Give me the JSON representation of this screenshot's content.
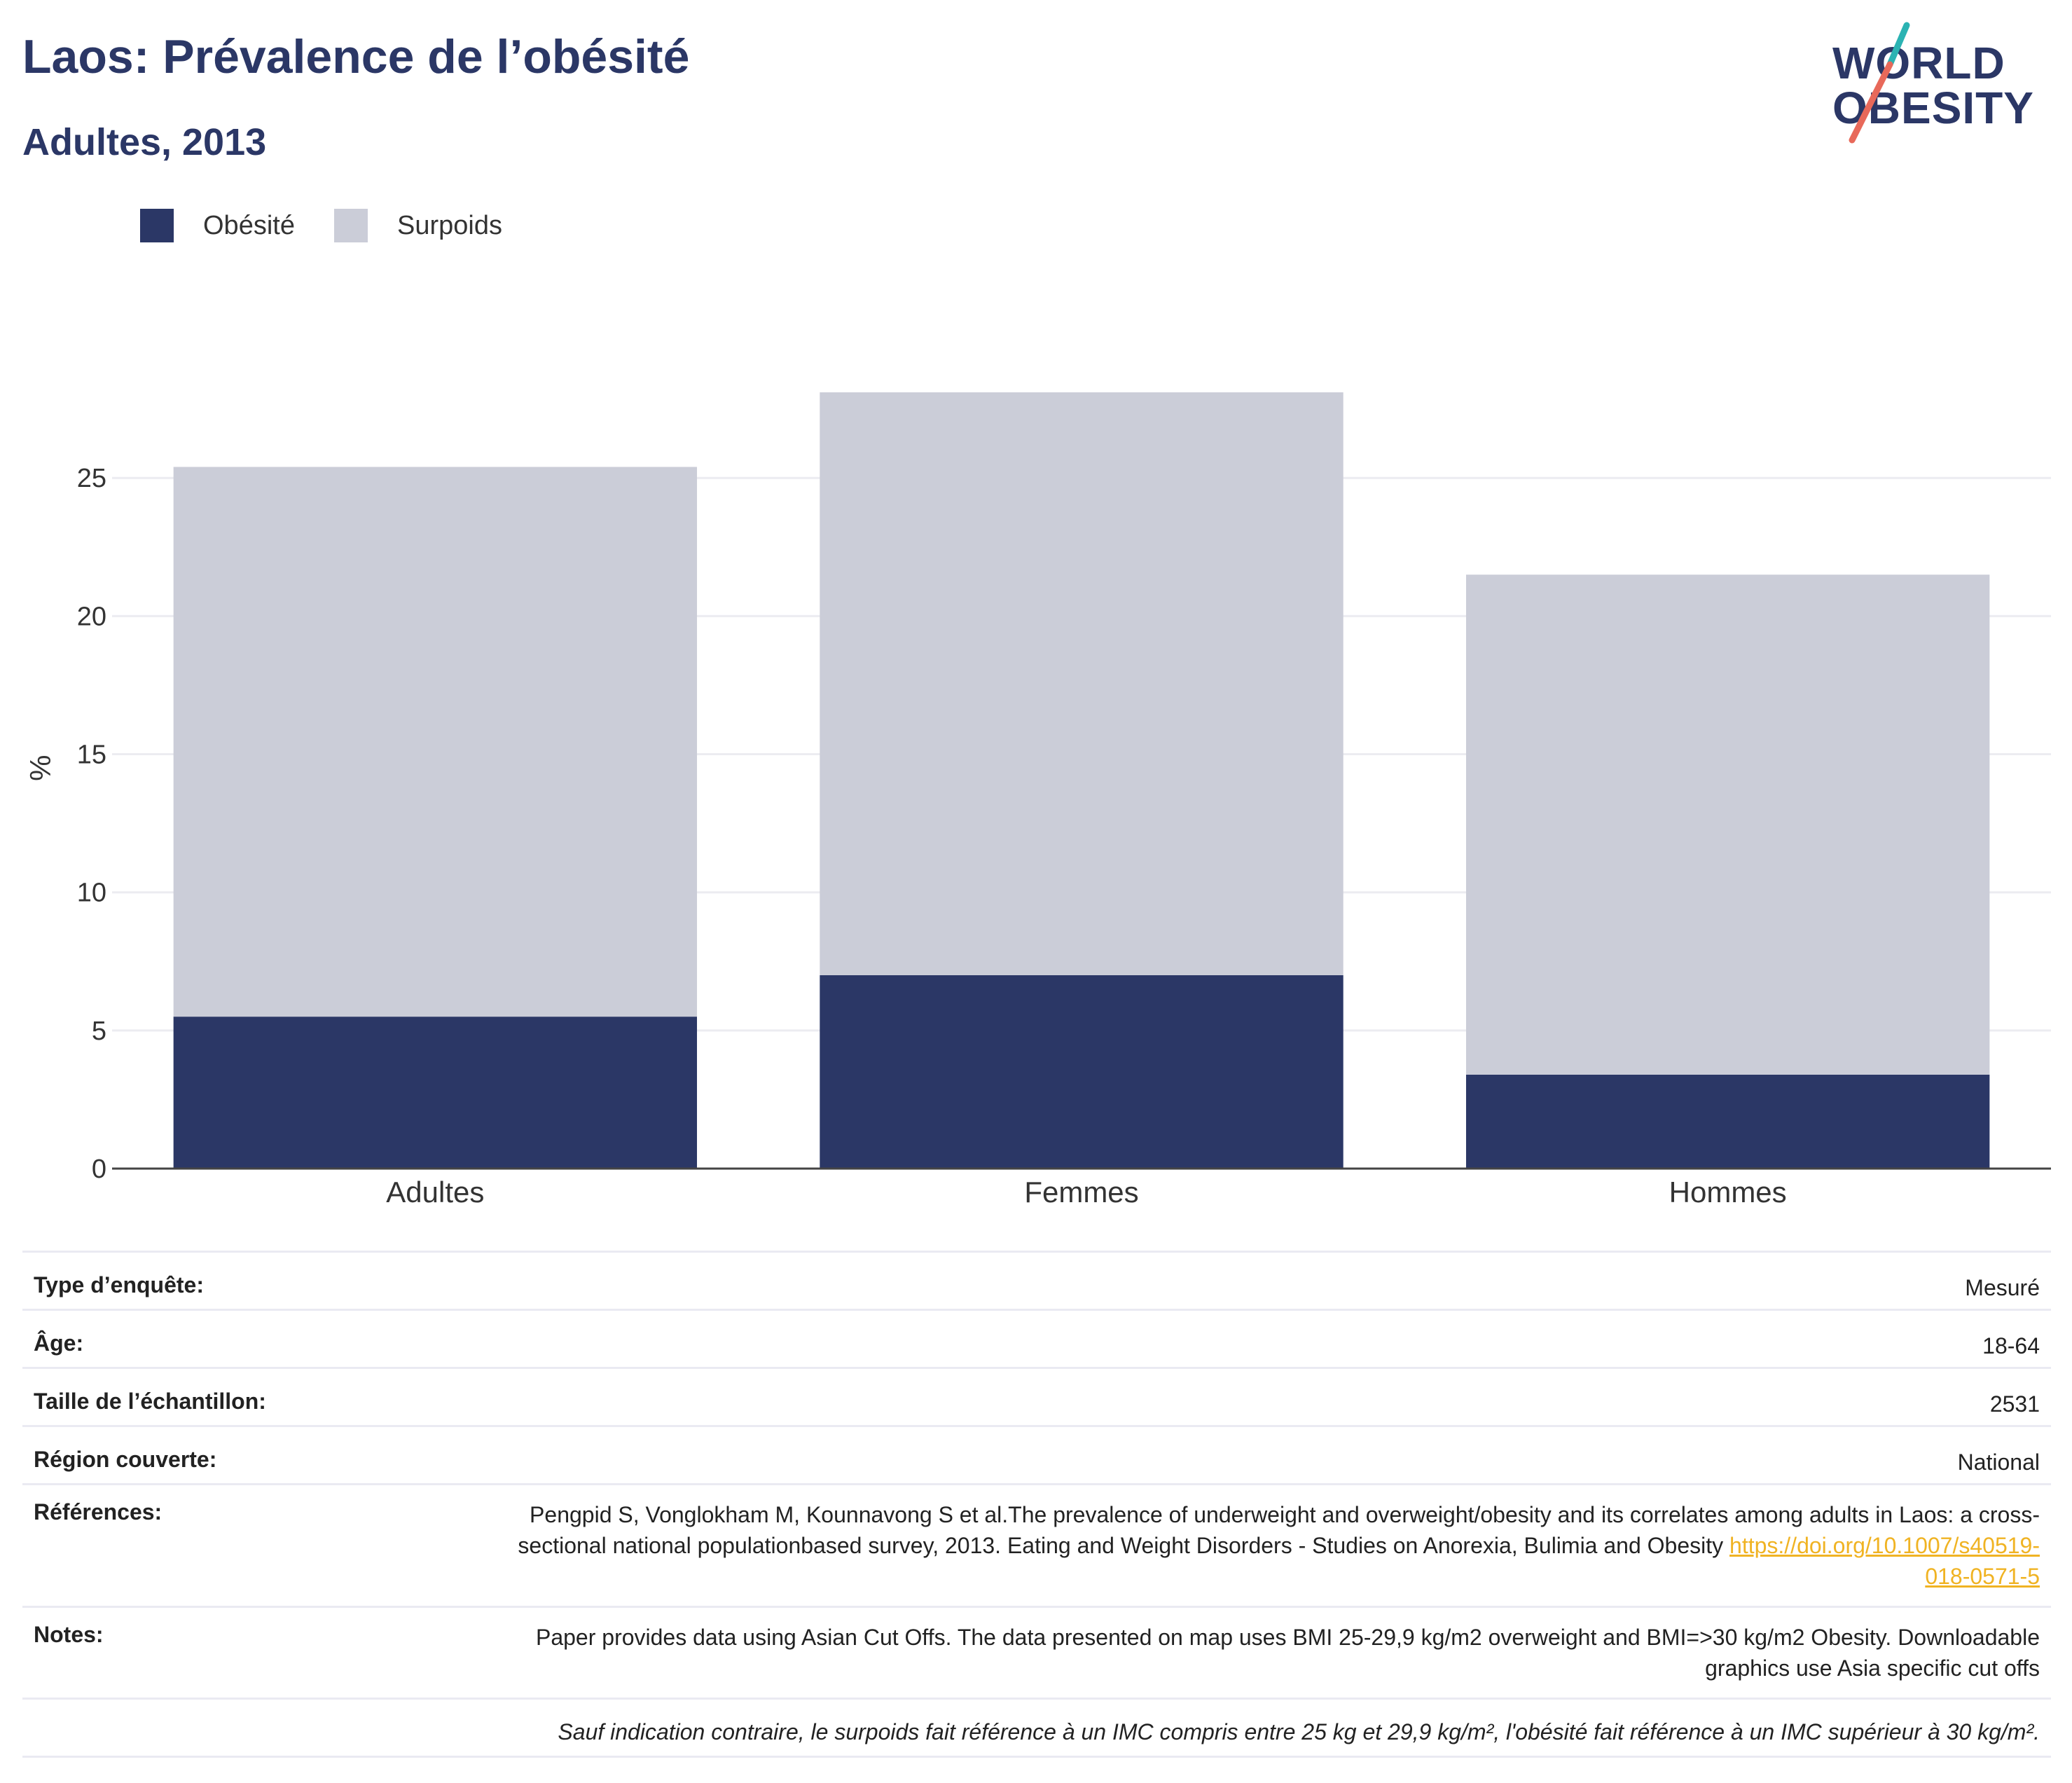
{
  "header": {
    "title": "Laos: Prévalence de l’obésité",
    "subtitle": "Adultes, 2013"
  },
  "logo": {
    "line1": "WORLD",
    "line2": "OBESITY",
    "colors": {
      "navy": "#2b3766",
      "teal": "#2bb3b3",
      "coral": "#e8695a"
    }
  },
  "legend": [
    {
      "label": "Obésité",
      "color": "#2b3766"
    },
    {
      "label": "Surpoids",
      "color": "#cbcdd8"
    }
  ],
  "chart_data": {
    "type": "bar",
    "stacked": true,
    "categories": [
      "Adultes",
      "Femmes",
      "Hommes"
    ],
    "series": [
      {
        "name": "Obésité",
        "color": "#2b3766",
        "values": [
          5.5,
          7.0,
          3.4
        ]
      },
      {
        "name": "Surpoids",
        "color": "#cbcdd8",
        "values": [
          19.9,
          21.1,
          18.1
        ]
      }
    ],
    "xlabel": "",
    "ylabel": "%",
    "ylim": [
      0,
      28.1
    ],
    "yticks": [
      0,
      5,
      10,
      15,
      20,
      25
    ],
    "grid": true,
    "legend_position": "top-left"
  },
  "info": {
    "survey_type": {
      "label": "Type d’enquête:",
      "value": "Mesuré"
    },
    "age": {
      "label": "Âge:",
      "value": "18-64"
    },
    "sample_size": {
      "label": "Taille de l’échantillon:",
      "value": "2531"
    },
    "region": {
      "label": "Région couverte:",
      "value": "National"
    },
    "references": {
      "label": "Références:",
      "text": "Pengpid S, Vonglokham M, Kounnavong S et al.The prevalence of underweight and overweight/obesity and its correlates among adults in Laos: a cross-sectional national populationbased survey, 2013. Eating and Weight Disorders - Studies on Anorexia, Bulimia and Obesity ",
      "link": "https://doi.org/10.1007/s40519-018-0571-5"
    },
    "notes": {
      "label": "Notes:",
      "value": "Paper provides data using Asian Cut Offs. The data presented on map uses BMI 25-29,9 kg/m2 overweight and BMI=>30 kg/m2 Obesity. Downloadable graphics use Asia specific cut offs"
    },
    "footnote": "Sauf indication contraire, le surpoids fait référence à un IMC compris entre 25 kg et 29,9 kg/m², l'obésité fait référence à un IMC supérieur à 30 kg/m²."
  }
}
